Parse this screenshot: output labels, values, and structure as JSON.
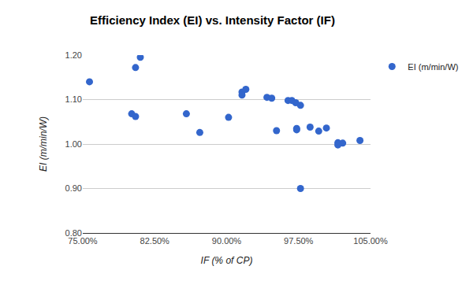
{
  "chart_data": {
    "type": "scatter",
    "title": "Efficiency Index (EI) vs. Intensity Factor (IF)",
    "x_label": "IF (% of CP)",
    "y_label": "EI (m/min/W)",
    "series": [
      {
        "name": "EI (m/min/W)",
        "color": "#3366cc",
        "marker": "circle",
        "x": [
          75.7,
          81.0,
          80.5,
          80.1,
          80.5,
          85.8,
          87.2,
          90.2,
          91.6,
          91.6,
          92.0,
          94.2,
          94.7,
          95.2,
          96.4,
          96.8,
          97.2,
          97.7,
          97.3,
          97.3,
          97.7,
          98.7,
          99.6,
          100.4,
          101.6,
          101.6,
          102.1,
          103.9
        ],
        "values": [
          1.14,
          1.195,
          1.172,
          1.068,
          1.062,
          1.068,
          1.026,
          1.06,
          1.117,
          1.11,
          1.123,
          1.105,
          1.103,
          1.03,
          1.098,
          1.098,
          1.093,
          1.087,
          1.035,
          1.032,
          0.9,
          1.038,
          1.029,
          1.036,
          1.003,
          0.998,
          1.002,
          1.008
        ]
      }
    ],
    "xlim": [
      75,
      105
    ],
    "xticks": [
      {
        "value": 75,
        "label": "75.00%"
      },
      {
        "value": 82.5,
        "label": "82.50%"
      },
      {
        "value": 90,
        "label": "90.00%"
      },
      {
        "value": 97.5,
        "label": "97.50%"
      },
      {
        "value": 105,
        "label": "105.00%"
      }
    ],
    "ylim": [
      0.8,
      1.2
    ],
    "yticks": [
      {
        "value": 0.8,
        "label": "0.80"
      },
      {
        "value": 0.9,
        "label": "0.90"
      },
      {
        "value": 1.0,
        "label": "1.00"
      },
      {
        "value": 1.1,
        "label": "1.10"
      },
      {
        "value": 1.2,
        "label": "1.20"
      }
    ],
    "grid": true,
    "legend": "right"
  }
}
